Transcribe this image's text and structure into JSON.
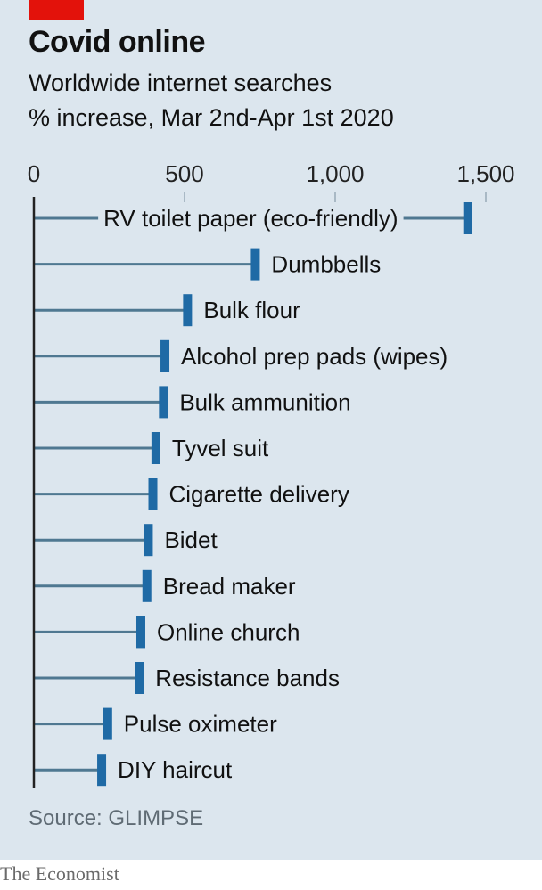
{
  "brand": {
    "accent_color": "#e3120b",
    "background_color": "#dce6ee",
    "bar_color": "#1f6aa5",
    "stem_color": "#4f7891",
    "footer_text": "The Economist"
  },
  "header": {
    "title": "Covid online",
    "subtitle": "Worldwide internet searches",
    "unit": "% increase, Mar 2nd-Apr 1st 2020"
  },
  "source": "Source: GLIMPSE",
  "chart_data": {
    "type": "bar",
    "title": "Covid online",
    "subtitle": "Worldwide internet searches",
    "xlabel": "% increase, Mar 2nd-Apr 1st 2020",
    "xlim": [
      0,
      1500
    ],
    "ticks": [
      {
        "value": 0,
        "label": "0"
      },
      {
        "value": 500,
        "label": "500"
      },
      {
        "value": 1000,
        "label": "1,000"
      },
      {
        "value": 1500,
        "label": "1,500"
      }
    ],
    "grid": false,
    "categories": [
      "RV toilet paper (eco-friendly)",
      "Dumbbells",
      "Bulk flour",
      "Alcohol prep pads (wipes)",
      "Bulk ammunition",
      "Tyvel suit",
      "Cigarette delivery",
      "Bidet",
      "Bread maker",
      "Online church",
      "Resistance bands",
      "Pulse oximeter",
      "DIY haircut"
    ],
    "values": [
      1440,
      735,
      510,
      435,
      430,
      405,
      395,
      380,
      375,
      355,
      350,
      245,
      225
    ]
  }
}
